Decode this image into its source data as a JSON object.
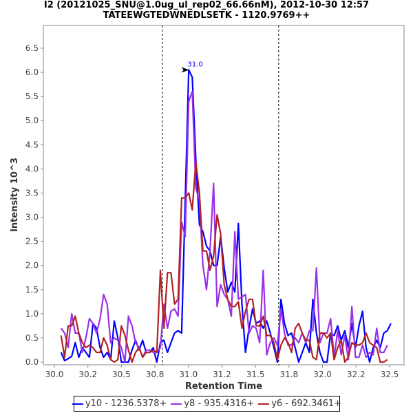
{
  "chart_data": {
    "type": "line",
    "title": "I2 (20121025_SNU@1.0ug_ul_rep02_66.66nM), 2012-10-30 12:57",
    "subtitle": "TATEEWGTEDWNEDLSETK - 1120.9769++",
    "xlabel": "Retention Time",
    "ylabel": "Intensity 10^3",
    "xlim": [
      29.918,
      32.608
    ],
    "ylim": [
      -0.057,
      6.97
    ],
    "x_ticks": [
      30.0,
      30.25,
      30.5,
      30.75,
      31.0,
      31.25,
      31.5,
      31.75,
      32.0,
      32.25,
      32.5
    ],
    "x_tick_labels": [
      "30.0",
      "30.2",
      "30.5",
      "30.8",
      "31.0",
      "31.2",
      "31.5",
      "31.8",
      "32.0",
      "32.2",
      "32.5"
    ],
    "y_ticks": [
      0.0,
      0.5,
      1.0,
      1.5,
      2.0,
      2.5,
      3.0,
      3.5,
      4.0,
      4.5,
      5.0,
      5.5,
      6.0,
      6.5
    ],
    "y_tick_labels": [
      "0.0",
      "0.5",
      "1.0",
      "1.5",
      "2.0",
      "2.5",
      "3.0",
      "3.5",
      "4.0",
      "4.5",
      "5.0",
      "5.5",
      "6.0",
      "6.5"
    ],
    "grid": false,
    "legend_placement": "bottom",
    "boundaries": [
      30.806,
      31.673
    ],
    "x_start": 30.05,
    "x_step": 0.02645,
    "peak_annotation": {
      "label": "31.0",
      "x": 31.02,
      "y": 6.05,
      "color": "#0000ff"
    },
    "series": [
      {
        "name": "y10 - 1236.5378+",
        "color": "#0000ff",
        "values": [
          0.2,
          0.03,
          0.07,
          0.12,
          0.4,
          0.1,
          0.3,
          0.2,
          0.1,
          0.8,
          0.7,
          0.3,
          0.1,
          0.2,
          0.05,
          0.85,
          0.5,
          0.0,
          0.0,
          0.0,
          0.25,
          0.45,
          0.25,
          0.45,
          0.2,
          0.2,
          0.3,
          0.0,
          0.4,
          0.45,
          0.2,
          0.4,
          0.6,
          0.65,
          0.6,
          3.3,
          6.05,
          5.9,
          4.2,
          2.85,
          2.7,
          2.4,
          2.3,
          2.0,
          2.0,
          2.6,
          1.95,
          1.45,
          1.65,
          1.45,
          2.87,
          1.2,
          0.2,
          0.7,
          1.1,
          0.8,
          0.85,
          0.7,
          0.85,
          0.6,
          0.3,
          0.0,
          1.3,
          0.8,
          0.55,
          0.6,
          0.3,
          0.0,
          0.2,
          0.4,
          0.2,
          1.3,
          0.6,
          0.2,
          0.0,
          0.0,
          0.6,
          0.55,
          0.75,
          0.45,
          0.65,
          0.3,
          0.8,
          0.3,
          0.75,
          1.05,
          0.3,
          0.0,
          0.3,
          0.45,
          0.3,
          0.6,
          0.65,
          0.8
        ]
      },
      {
        "name": "y8 - 935.4316+",
        "color": "#9b30e8",
        "values": [
          0.7,
          0.6,
          0.3,
          1.0,
          0.6,
          0.6,
          0.2,
          0.5,
          0.9,
          0.8,
          0.6,
          0.9,
          1.4,
          1.2,
          0.4,
          0.5,
          0.45,
          0.3,
          0.0,
          0.95,
          0.75,
          0.4,
          0.3,
          0.1,
          0.25,
          0.25,
          0.2,
          0.2,
          0.3,
          1.2,
          0.7,
          1.05,
          1.1,
          0.95,
          2.9,
          2.6,
          5.4,
          5.6,
          3.6,
          3.35,
          2.0,
          1.5,
          2.3,
          3.7,
          1.15,
          1.6,
          1.4,
          1.3,
          0.95,
          2.7,
          1.3,
          1.35,
          1.4,
          0.6,
          0.75,
          0.7,
          0.4,
          1.9,
          0.15,
          0.4,
          0.5,
          0.35,
          1.1,
          0.6,
          0.35,
          0.35,
          0.5,
          0.4,
          0.6,
          0.4,
          0.65,
          0.65,
          1.95,
          0.4,
          0.6,
          0.6,
          0.9,
          0.1,
          0.65,
          0.15,
          0.55,
          0.05,
          1.15,
          0.1,
          0.1,
          0.35,
          0.1,
          0.2,
          0.15,
          0.7,
          0.2,
          0.2,
          0.35
        ]
      },
      {
        "name": "y6 - 692.3461+",
        "color": "#b22222",
        "values": [
          0.55,
          0.1,
          0.75,
          0.75,
          0.95,
          0.6,
          0.4,
          0.3,
          0.35,
          0.3,
          0.2,
          0.2,
          0.5,
          0.35,
          0.05,
          0.0,
          0.05,
          0.75,
          0.55,
          0.25,
          0.0,
          0.2,
          0.3,
          0.1,
          0.2,
          0.2,
          0.25,
          0.2,
          1.9,
          0.7,
          1.85,
          1.85,
          1.2,
          1.3,
          3.4,
          3.4,
          3.5,
          3.15,
          4.15,
          3.5,
          2.3,
          2.3,
          1.9,
          2.2,
          3.05,
          2.65,
          1.6,
          1.3,
          1.15,
          1.15,
          1.25,
          0.7,
          1.05,
          1.3,
          1.3,
          0.75,
          0.75,
          0.95,
          0.55,
          0.55,
          0.4,
          0.05,
          0.35,
          0.5,
          0.4,
          0.2,
          0.7,
          0.8,
          0.6,
          0.45,
          0.45,
          0.1,
          0.05,
          0.6,
          0.6,
          0.5,
          0.6,
          0.05,
          0.3,
          0.45,
          0.0,
          0.1,
          0.4,
          0.35,
          0.35,
          0.4,
          0.6,
          0.4,
          0.35,
          0.3,
          0.0,
          0.0,
          0.05
        ]
      }
    ]
  }
}
